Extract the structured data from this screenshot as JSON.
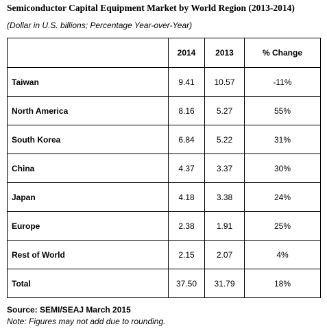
{
  "header": {
    "title": "Semiconductor Capital Equipment Market by World Region (2013-2014)",
    "subtitle": "(Dollar in U.S. billions; Percentage Year-over-Year)"
  },
  "table": {
    "columns": [
      "",
      "2014",
      "2013",
      "% Change"
    ],
    "rows": [
      [
        "Taiwan",
        "9.41",
        "10.57",
        "-11%"
      ],
      [
        "North America",
        "8.16",
        "5.27",
        "55%"
      ],
      [
        "South Korea",
        "6.84",
        "5.22",
        "31%"
      ],
      [
        "China",
        "4.37",
        "3.37",
        "30%"
      ],
      [
        "Japan",
        "4.18",
        "3.38",
        "24%"
      ],
      [
        "Europe",
        "2.38",
        "1.91",
        "25%"
      ],
      [
        "Rest of World",
        "2.15",
        "2.07",
        "4%"
      ],
      [
        "Total",
        "37.50",
        "31.79",
        "18%"
      ]
    ]
  },
  "footer": {
    "source": "Source: SEMI/SEAJ March 2015",
    "note": "Note: Figures may not add due to rounding."
  }
}
